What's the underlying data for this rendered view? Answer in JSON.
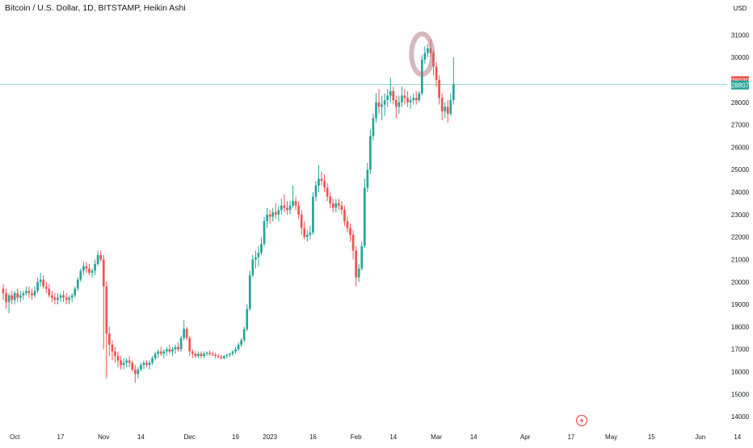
{
  "header": {
    "title": "Bitcoin / U.S. Dollar, 1D, BITSTAMP, Heikin Ashi",
    "currency": "USD"
  },
  "price_labels": {
    "red": "28930",
    "green": "28807"
  },
  "colors": {
    "up": "#26a69a",
    "down": "#ef5350",
    "background": "#ffffff",
    "axis_text": "#131722",
    "last_price_line": "#26a69a",
    "highlight": "#b0727a"
  },
  "icons": [
    "lightning-icon"
  ],
  "chart_data": {
    "type": "candlestick",
    "title": "Bitcoin / U.S. Dollar, 1D, BITSTAMP, Heikin Ashi",
    "ylabel": "USD",
    "ylim": [
      13500,
      32200
    ],
    "y_ticks": [
      14000,
      15000,
      16000,
      17000,
      18000,
      19000,
      20000,
      21000,
      22000,
      23000,
      24000,
      25000,
      26000,
      27000,
      28000,
      29000,
      30000,
      31000
    ],
    "x_ticks": [
      {
        "label": "Oct",
        "index": 4
      },
      {
        "label": "17",
        "index": 20
      },
      {
        "label": "Nov",
        "index": 35
      },
      {
        "label": "14",
        "index": 48
      },
      {
        "label": "Dec",
        "index": 65
      },
      {
        "label": "19",
        "index": 81
      },
      {
        "label": "2023",
        "index": 93
      },
      {
        "label": "16",
        "index": 108
      },
      {
        "label": "Feb",
        "index": 123
      },
      {
        "label": "14",
        "index": 136
      },
      {
        "label": "Mar",
        "index": 151
      },
      {
        "label": "14",
        "index": 164
      },
      {
        "label": "Apr",
        "index": 182
      },
      {
        "label": "17",
        "index": 198
      },
      {
        "label": "May",
        "index": 212
      },
      {
        "label": "15",
        "index": 226
      },
      {
        "label": "Jun",
        "index": 243
      },
      {
        "label": "14",
        "index": 256
      }
    ],
    "grid": false,
    "last_price": 28807,
    "annotation": "circle around local top near 30400",
    "candles_ohlc": [
      [
        19700,
        19900,
        19200,
        19500
      ],
      [
        19500,
        19700,
        18800,
        19100
      ],
      [
        19100,
        19500,
        18600,
        19400
      ],
      [
        19400,
        19600,
        19000,
        19200
      ],
      [
        19200,
        19600,
        19000,
        19500
      ],
      [
        19500,
        19700,
        19100,
        19300
      ],
      [
        19300,
        19600,
        19100,
        19400
      ],
      [
        19400,
        19600,
        19200,
        19500
      ],
      [
        19500,
        19800,
        19400,
        19600
      ],
      [
        19600,
        19800,
        19300,
        19500
      ],
      [
        19500,
        19700,
        19200,
        19400
      ],
      [
        19400,
        19800,
        19300,
        19600
      ],
      [
        19600,
        20200,
        19500,
        20000
      ],
      [
        20000,
        20400,
        19800,
        20100
      ],
      [
        20100,
        20300,
        19700,
        19800
      ],
      [
        19800,
        20000,
        19500,
        19700
      ],
      [
        19700,
        19900,
        19300,
        19400
      ],
      [
        19400,
        19600,
        19100,
        19300
      ],
      [
        19300,
        19500,
        19000,
        19200
      ],
      [
        19200,
        19500,
        19000,
        19300
      ],
      [
        19300,
        19500,
        19100,
        19400
      ],
      [
        19400,
        19600,
        19100,
        19300
      ],
      [
        19300,
        19500,
        19000,
        19200
      ],
      [
        19200,
        19400,
        19000,
        19300
      ],
      [
        19300,
        19500,
        19100,
        19400
      ],
      [
        19400,
        19800,
        19300,
        19700
      ],
      [
        19700,
        20200,
        19600,
        20100
      ],
      [
        20100,
        20600,
        20000,
        20500
      ],
      [
        20500,
        20900,
        20300,
        20700
      ],
      [
        20700,
        20900,
        20400,
        20600
      ],
      [
        20600,
        20800,
        20300,
        20400
      ],
      [
        20400,
        20600,
        20200,
        20500
      ],
      [
        20500,
        21000,
        20300,
        20800
      ],
      [
        20800,
        21400,
        20700,
        21200
      ],
      [
        21200,
        21400,
        20900,
        21000
      ],
      [
        21000,
        21200,
        17000,
        19800
      ],
      [
        19800,
        20000,
        15700,
        17700
      ],
      [
        17700,
        18000,
        16700,
        17200
      ],
      [
        17200,
        17400,
        16500,
        16900
      ],
      [
        16900,
        17100,
        16400,
        16700
      ],
      [
        16700,
        16900,
        16200,
        16500
      ],
      [
        16500,
        16700,
        16100,
        16300
      ],
      [
        16300,
        16600,
        16100,
        16400
      ],
      [
        16400,
        16600,
        16200,
        16500
      ],
      [
        16500,
        16700,
        16200,
        16400
      ],
      [
        16400,
        16500,
        16000,
        16100
      ],
      [
        16100,
        16300,
        15500,
        15900
      ],
      [
        15900,
        16200,
        15700,
        16100
      ],
      [
        16100,
        16400,
        16000,
        16300
      ],
      [
        16300,
        16500,
        16100,
        16400
      ],
      [
        16400,
        16500,
        16200,
        16300
      ],
      [
        16300,
        16500,
        16100,
        16400
      ],
      [
        16400,
        16700,
        16300,
        16600
      ],
      [
        16600,
        16900,
        16500,
        16800
      ],
      [
        16800,
        17000,
        16600,
        16900
      ],
      [
        16900,
        17100,
        16700,
        16800
      ],
      [
        16800,
        17000,
        16600,
        16900
      ],
      [
        16900,
        17100,
        16700,
        17000
      ],
      [
        17000,
        17200,
        16800,
        16900
      ],
      [
        16900,
        17100,
        16700,
        17000
      ],
      [
        17000,
        17200,
        16800,
        17100
      ],
      [
        17100,
        17300,
        16900,
        17000
      ],
      [
        17000,
        17600,
        16900,
        17500
      ],
      [
        17500,
        18300,
        17400,
        17900
      ],
      [
        17900,
        18000,
        17400,
        17500
      ],
      [
        17500,
        17600,
        16700,
        16900
      ],
      [
        16900,
        17000,
        16600,
        16800
      ],
      [
        16800,
        16900,
        16600,
        16700
      ],
      [
        16700,
        16900,
        16600,
        16800
      ],
      [
        16800,
        16900,
        16600,
        16700
      ],
      [
        16700,
        16900,
        16600,
        16800
      ],
      [
        16800,
        16900,
        16700,
        16850
      ],
      [
        16850,
        16950,
        16700,
        16800
      ],
      [
        16800,
        16900,
        16700,
        16750
      ],
      [
        16750,
        16850,
        16600,
        16700
      ],
      [
        16700,
        16800,
        16600,
        16650
      ],
      [
        16650,
        16750,
        16550,
        16600
      ],
      [
        16600,
        16750,
        16550,
        16700
      ],
      [
        16700,
        16800,
        16600,
        16750
      ],
      [
        16750,
        16850,
        16650,
        16800
      ],
      [
        16800,
        16950,
        16700,
        16900
      ],
      [
        16900,
        17100,
        16800,
        17000
      ],
      [
        17000,
        17300,
        16900,
        17200
      ],
      [
        17200,
        17500,
        17100,
        17400
      ],
      [
        17400,
        18000,
        17300,
        17900
      ],
      [
        17900,
        19000,
        17800,
        18800
      ],
      [
        18800,
        20500,
        18700,
        20300
      ],
      [
        20300,
        21200,
        20200,
        21000
      ],
      [
        21000,
        21400,
        20600,
        21100
      ],
      [
        21100,
        21600,
        20700,
        21300
      ],
      [
        21300,
        22000,
        21200,
        21700
      ],
      [
        21700,
        22900,
        21600,
        22700
      ],
      [
        22700,
        23300,
        22400,
        23000
      ],
      [
        23000,
        23200,
        22600,
        22900
      ],
      [
        22900,
        23300,
        22700,
        23100
      ],
      [
        23100,
        23500,
        22800,
        23000
      ],
      [
        23000,
        23400,
        22700,
        23200
      ],
      [
        23200,
        23700,
        23000,
        23400
      ],
      [
        23400,
        23900,
        23100,
        23300
      ],
      [
        23300,
        23600,
        23000,
        23200
      ],
      [
        23200,
        23600,
        23000,
        23400
      ],
      [
        23400,
        24300,
        23300,
        23600
      ],
      [
        23600,
        23800,
        23200,
        23400
      ],
      [
        23400,
        23600,
        22800,
        23000
      ],
      [
        23000,
        23200,
        22100,
        22400
      ],
      [
        22400,
        22700,
        21900,
        22000
      ],
      [
        22000,
        22300,
        21800,
        22100
      ],
      [
        22100,
        22500,
        21900,
        22200
      ],
      [
        22200,
        24000,
        22100,
        23800
      ],
      [
        23800,
        24500,
        23600,
        24300
      ],
      [
        24300,
        25200,
        24000,
        24600
      ],
      [
        24600,
        24900,
        24300,
        24500
      ],
      [
        24500,
        24800,
        24000,
        24200
      ],
      [
        24200,
        24400,
        23600,
        23800
      ],
      [
        23800,
        24000,
        23300,
        23500
      ],
      [
        23500,
        23700,
        23100,
        23300
      ],
      [
        23300,
        23700,
        23100,
        23500
      ],
      [
        23500,
        23700,
        23200,
        23400
      ],
      [
        23400,
        23600,
        23000,
        23200
      ],
      [
        23200,
        23400,
        22500,
        22700
      ],
      [
        22700,
        22900,
        22200,
        22400
      ],
      [
        22400,
        22600,
        21800,
        22100
      ],
      [
        22100,
        22300,
        21000,
        21400
      ],
      [
        21400,
        21600,
        19800,
        20200
      ],
      [
        20200,
        20800,
        20000,
        20600
      ],
      [
        20600,
        21800,
        20500,
        21600
      ],
      [
        21600,
        24600,
        21500,
        24200
      ],
      [
        24200,
        25300,
        24000,
        25000
      ],
      [
        25000,
        26800,
        24800,
        26500
      ],
      [
        26500,
        27500,
        26300,
        27300
      ],
      [
        27300,
        28400,
        27100,
        28000
      ],
      [
        28000,
        28600,
        27500,
        27800
      ],
      [
        27800,
        28300,
        27200,
        27900
      ],
      [
        27900,
        28400,
        27400,
        28100
      ],
      [
        28100,
        28600,
        27800,
        28300
      ],
      [
        28300,
        29100,
        28000,
        28500
      ],
      [
        28500,
        28700,
        27900,
        28100
      ],
      [
        28100,
        28300,
        27300,
        27800
      ],
      [
        27800,
        28300,
        27500,
        28000
      ],
      [
        28000,
        28700,
        27800,
        28300
      ],
      [
        28300,
        28600,
        27900,
        28200
      ],
      [
        28200,
        28500,
        27800,
        28000
      ],
      [
        28000,
        28300,
        27700,
        28100
      ],
      [
        28100,
        28400,
        27900,
        28200
      ],
      [
        28200,
        28500,
        27900,
        28100
      ],
      [
        28100,
        28500,
        28000,
        28400
      ],
      [
        28400,
        30100,
        28300,
        29900
      ],
      [
        29900,
        30500,
        29700,
        30200
      ],
      [
        30200,
        30600,
        30000,
        30400
      ],
      [
        30400,
        30800,
        30000,
        30200
      ],
      [
        30200,
        30300,
        29200,
        29600
      ],
      [
        29600,
        29800,
        28700,
        29000
      ],
      [
        29000,
        29200,
        27900,
        28200
      ],
      [
        28200,
        28400,
        27200,
        27600
      ],
      [
        27600,
        28000,
        27300,
        27800
      ],
      [
        27800,
        28100,
        27100,
        27500
      ],
      [
        27500,
        28400,
        27400,
        28100
      ],
      [
        28100,
        30000,
        27900,
        28807
      ]
    ]
  }
}
